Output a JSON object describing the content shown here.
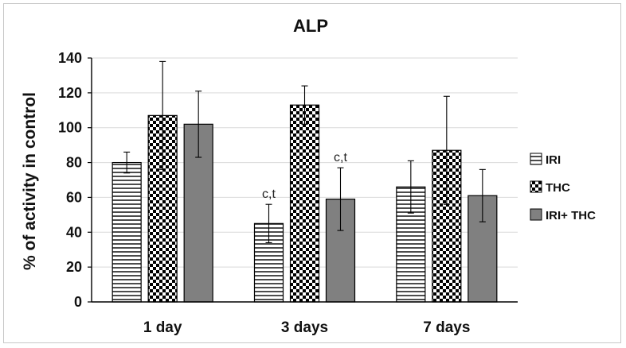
{
  "chart_data": {
    "type": "bar",
    "title": "ALP",
    "xlabel": "",
    "ylabel": "% of activity in control",
    "ylim": [
      0,
      140
    ],
    "yticks": [
      0,
      20,
      40,
      60,
      80,
      100,
      120,
      140
    ],
    "grid": true,
    "legend_position": "right",
    "categories": [
      "1 day",
      "3 days",
      "7 days"
    ],
    "series": [
      {
        "name": "IRI",
        "pattern": "horizontal-lines",
        "values": [
          80,
          45,
          66
        ],
        "error": [
          6,
          11,
          15
        ]
      },
      {
        "name": "THC",
        "pattern": "checker",
        "values": [
          107,
          113,
          87
        ],
        "error": [
          31,
          11,
          31
        ]
      },
      {
        "name": "IRI+ THC",
        "pattern": "solid",
        "color": "#808080",
        "values": [
          102,
          59,
          61
        ],
        "error": [
          19,
          18,
          15
        ]
      }
    ],
    "annotations": [
      {
        "category": "3 days",
        "series": "IRI",
        "text": "c,t"
      },
      {
        "category": "3 days",
        "series": "IRI+ THC",
        "text": "c,t"
      }
    ]
  }
}
